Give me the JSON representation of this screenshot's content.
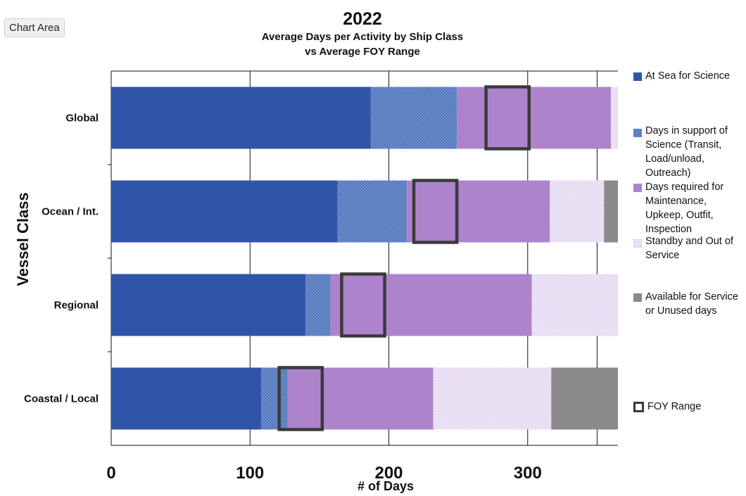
{
  "ui": {
    "tooltip": "Chart Area"
  },
  "chart_data": {
    "type": "bar",
    "orientation": "horizontal",
    "stacked": true,
    "title": "2022",
    "subtitle_lines": [
      "Average Days per Activity by Ship Class",
      "vs Average FOY Range"
    ],
    "xlabel": "# of Days",
    "ylabel": "Vessel Class",
    "xlim": [
      0,
      365
    ],
    "xticks": [
      0,
      100,
      200,
      300
    ],
    "grid": "vertical",
    "legend_position": "right",
    "categories": [
      "Global",
      "Ocean / Int.",
      "Regional",
      "Coastal / Local"
    ],
    "series": [
      {
        "name": "At Sea for Science",
        "values": [
          187,
          163,
          140,
          108
        ],
        "color": "#2f55a8",
        "pattern": "solid"
      },
      {
        "name": "Days in support of Science (Transit, Load/unload, Outreach)",
        "values": [
          62,
          50,
          18,
          19
        ],
        "color": "#5f86c6",
        "pattern": "crosshatch"
      },
      {
        "name": "Days required for Maintenance, Upkeep, Outfit, Inspection",
        "values": [
          111,
          103,
          145,
          105
        ],
        "color": "#ad83cc",
        "pattern": "solid"
      },
      {
        "name": "Standby and Out of Service",
        "values": [
          5,
          39,
          62,
          85
        ],
        "color": "#c9b6df",
        "pattern": "dotted"
      },
      {
        "name": "Available for Service or Unused days",
        "values": [
          0,
          10,
          0,
          50
        ],
        "color": "#8a8a8a",
        "pattern": "solid"
      }
    ],
    "foy_range": {
      "name": "FOY Range",
      "ranges": [
        [
          270,
          301
        ],
        [
          218,
          249
        ],
        [
          166,
          197
        ],
        [
          121,
          152
        ]
      ],
      "color": "#3a3a3a"
    },
    "tick_labels": [
      "0",
      "100",
      "200",
      "300"
    ]
  }
}
